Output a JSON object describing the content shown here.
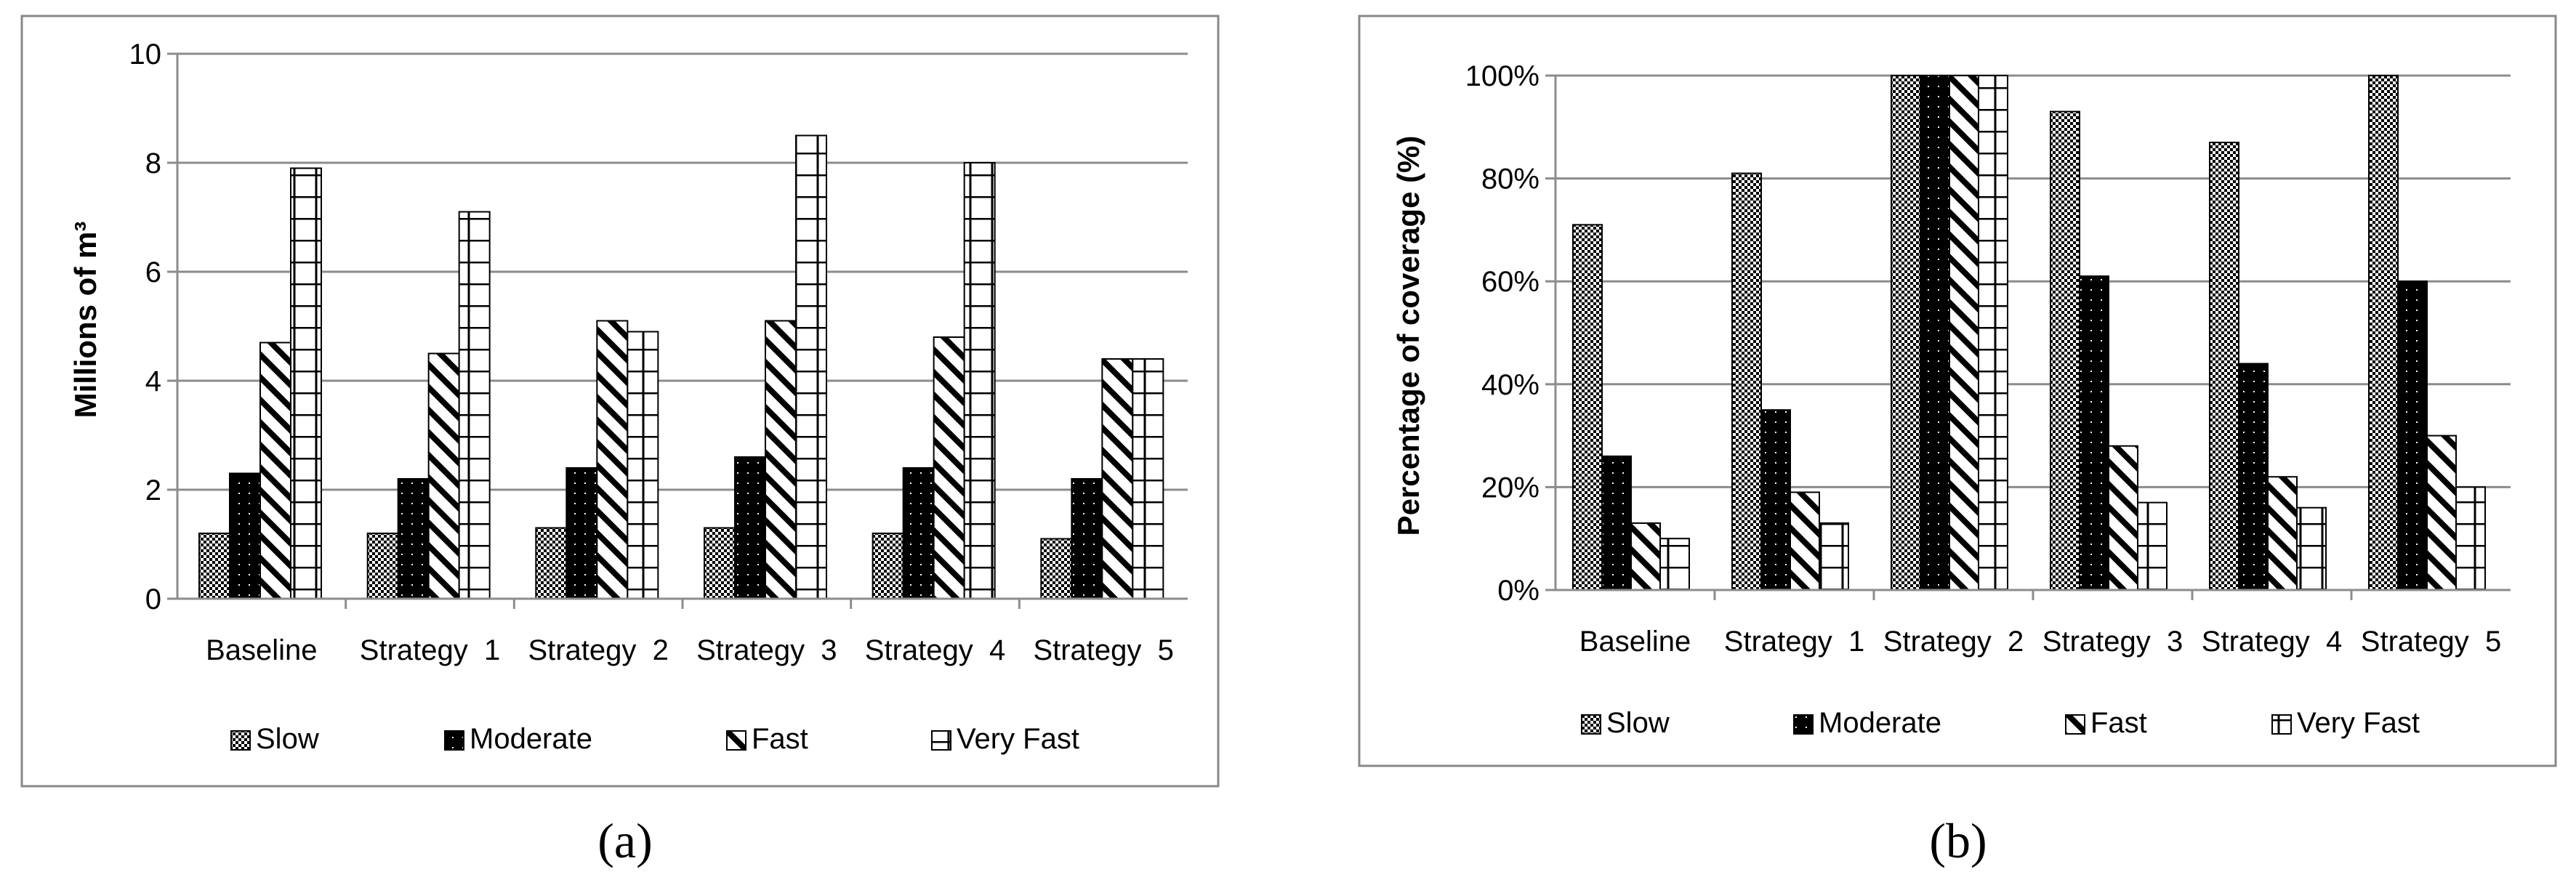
{
  "panel_labels": [
    "(a)",
    "(b)"
  ],
  "chart_data": [
    {
      "type": "bar",
      "title": "",
      "xlabel": "",
      "ylabel": "Millions of m³",
      "ylim": [
        0,
        10
      ],
      "yticks": [
        "0",
        "2",
        "4",
        "6",
        "8",
        "10"
      ],
      "grid": true,
      "legend_position": "bottom",
      "categories": [
        "Baseline",
        "Strategy  1",
        "Strategy  2",
        "Strategy  3",
        "Strategy  4",
        "Strategy  5"
      ],
      "series": [
        {
          "name": "Slow",
          "values": [
            1.2,
            1.2,
            1.3,
            1.3,
            1.2,
            1.1
          ]
        },
        {
          "name": "Moderate",
          "values": [
            2.3,
            2.2,
            2.4,
            2.6,
            2.4,
            2.2
          ]
        },
        {
          "name": "Fast",
          "values": [
            4.7,
            4.5,
            5.1,
            5.1,
            4.8,
            4.4
          ]
        },
        {
          "name": "Very Fast",
          "values": [
            7.9,
            7.1,
            4.9,
            8.5,
            8.0,
            4.4
          ]
        }
      ]
    },
    {
      "type": "bar",
      "title": "",
      "xlabel": "",
      "ylabel": "Percentage of coverage (%)",
      "ylim": [
        0,
        100
      ],
      "yticks": [
        "0%",
        "20%",
        "40%",
        "60%",
        "80%",
        "100%"
      ],
      "grid": true,
      "legend_position": "bottom",
      "categories": [
        "Baseline",
        "Strategy  1",
        "Strategy  2",
        "Strategy  3",
        "Strategy  4",
        "Strategy  5"
      ],
      "series": [
        {
          "name": "Slow",
          "values": [
            71,
            81,
            100,
            93,
            87,
            100
          ]
        },
        {
          "name": "Moderate",
          "values": [
            26,
            35,
            100,
            61,
            44,
            60
          ]
        },
        {
          "name": "Fast",
          "values": [
            13,
            19,
            100,
            28,
            22,
            30
          ]
        },
        {
          "name": "Very Fast",
          "values": [
            10,
            13,
            100,
            17,
            16,
            20
          ]
        }
      ]
    }
  ]
}
